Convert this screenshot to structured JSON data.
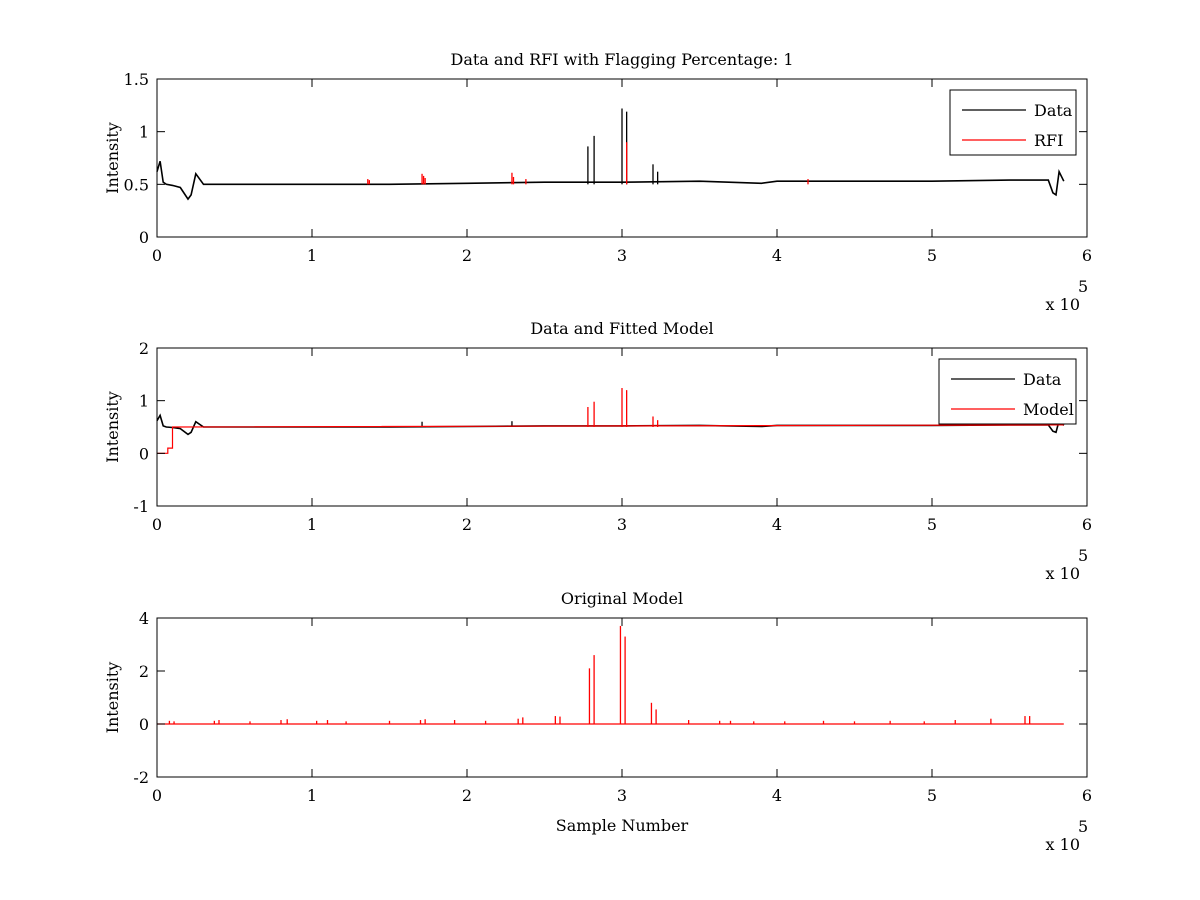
{
  "colors": {
    "data": "#000000",
    "rfi": "#ff0000",
    "model": "#ff0000",
    "background": "#ffffff"
  },
  "chart_data": [
    {
      "type": "line",
      "title": "Data and RFI with Flagging Percentage: 1",
      "xlabel": "",
      "ylabel": "Intensity",
      "xlim": [
        0,
        6
      ],
      "ylim": [
        0,
        1.5
      ],
      "x_ticks": [
        "0",
        "1",
        "2",
        "3",
        "4",
        "5",
        "6"
      ],
      "y_ticks": [
        "0",
        "0.5",
        "1",
        "1.5"
      ],
      "x_multiplier": "x 10",
      "x_multiplier_exp": "5",
      "legend": {
        "placement": "top-right",
        "entries": [
          "Data",
          "RFI"
        ]
      },
      "grid": false,
      "series": [
        {
          "name": "Data",
          "color": "#000000",
          "baseline": 0.5,
          "x": [
            0,
            0.02,
            0.04,
            0.06,
            0.1,
            0.15,
            0.2,
            0.22,
            0.25,
            0.3,
            0.5,
            1.0,
            1.5,
            2.0,
            2.5,
            3.0,
            3.5,
            3.9,
            4.0,
            4.5,
            5.0,
            5.5,
            5.75,
            5.78,
            5.8,
            5.82,
            5.85
          ],
          "y": [
            0.62,
            0.72,
            0.52,
            0.5,
            0.49,
            0.47,
            0.36,
            0.4,
            0.6,
            0.5,
            0.5,
            0.5,
            0.5,
            0.51,
            0.52,
            0.52,
            0.53,
            0.51,
            0.53,
            0.53,
            0.53,
            0.54,
            0.54,
            0.42,
            0.4,
            0.62,
            0.53
          ],
          "spikes": [
            {
              "x": 2.78,
              "y": 0.86
            },
            {
              "x": 2.82,
              "y": 0.96
            },
            {
              "x": 3.0,
              "y": 1.22
            },
            {
              "x": 3.03,
              "y": 1.19
            },
            {
              "x": 3.2,
              "y": 0.69
            },
            {
              "x": 3.23,
              "y": 0.62
            }
          ]
        },
        {
          "name": "RFI",
          "color": "#ff0000",
          "baseline": 0.5,
          "spikes": [
            {
              "x": 1.36,
              "y": 0.55
            },
            {
              "x": 1.37,
              "y": 0.54
            },
            {
              "x": 1.71,
              "y": 0.6
            },
            {
              "x": 1.72,
              "y": 0.58
            },
            {
              "x": 1.73,
              "y": 0.56
            },
            {
              "x": 2.29,
              "y": 0.61
            },
            {
              "x": 2.3,
              "y": 0.57
            },
            {
              "x": 2.38,
              "y": 0.55
            },
            {
              "x": 3.03,
              "y": 0.9
            },
            {
              "x": 4.2,
              "y": 0.55
            }
          ]
        }
      ]
    },
    {
      "type": "line",
      "title": "Data and Fitted Model",
      "xlabel": "",
      "ylabel": "Intensity",
      "xlim": [
        0,
        6
      ],
      "ylim": [
        -1,
        2
      ],
      "x_ticks": [
        "0",
        "1",
        "2",
        "3",
        "4",
        "5",
        "6"
      ],
      "y_ticks": [
        "-1",
        "0",
        "1",
        "2"
      ],
      "x_multiplier": "x 10",
      "x_multiplier_exp": "5",
      "legend": {
        "placement": "top-right",
        "entries": [
          "Data",
          "Model"
        ]
      },
      "grid": false,
      "series": [
        {
          "name": "Data",
          "color": "#000000",
          "baseline": 0.5,
          "x": [
            0,
            0.02,
            0.04,
            0.06,
            0.1,
            0.15,
            0.2,
            0.22,
            0.25,
            0.3,
            0.5,
            1.0,
            1.5,
            2.0,
            2.5,
            3.0,
            3.5,
            3.9,
            4.0,
            4.5,
            5.0,
            5.5,
            5.75,
            5.78,
            5.8,
            5.82,
            5.85
          ],
          "y": [
            0.62,
            0.72,
            0.52,
            0.5,
            0.49,
            0.47,
            0.36,
            0.4,
            0.6,
            0.5,
            0.5,
            0.5,
            0.5,
            0.51,
            0.52,
            0.52,
            0.53,
            0.51,
            0.53,
            0.53,
            0.53,
            0.54,
            0.54,
            0.42,
            0.4,
            0.62,
            0.53
          ],
          "spikes": [
            {
              "x": 1.71,
              "y": 0.6
            },
            {
              "x": 2.29,
              "y": 0.61
            }
          ]
        },
        {
          "name": "Model",
          "color": "#ff0000",
          "baseline": 0.5,
          "x": [
            0,
            0.07,
            0.07,
            0.1,
            0.1,
            5.85
          ],
          "y": [
            0,
            0,
            0.1,
            0.1,
            0.5,
            0.54
          ],
          "spikes": [
            {
              "x": 2.78,
              "y": 0.88
            },
            {
              "x": 2.82,
              "y": 0.98
            },
            {
              "x": 3.0,
              "y": 1.24
            },
            {
              "x": 3.03,
              "y": 1.2
            },
            {
              "x": 3.2,
              "y": 0.7
            },
            {
              "x": 3.23,
              "y": 0.63
            }
          ]
        }
      ]
    },
    {
      "type": "line",
      "title": "Original Model",
      "xlabel": "Sample Number",
      "ylabel": "Intensity",
      "xlim": [
        0,
        6
      ],
      "ylim": [
        -2,
        4
      ],
      "x_ticks": [
        "0",
        "1",
        "2",
        "3",
        "4",
        "5",
        "6"
      ],
      "y_ticks": [
        "-2",
        "0",
        "2",
        "4"
      ],
      "x_multiplier": "x 10",
      "x_multiplier_exp": "5",
      "grid": false,
      "series": [
        {
          "color": "#ff0000",
          "baseline": 0,
          "x": [
            0,
            5.85
          ],
          "y": [
            0,
            0
          ],
          "spikes": [
            {
              "x": 0.08,
              "y": 0.12
            },
            {
              "x": 0.11,
              "y": 0.1
            },
            {
              "x": 0.37,
              "y": 0.12
            },
            {
              "x": 0.4,
              "y": 0.15
            },
            {
              "x": 0.6,
              "y": 0.1
            },
            {
              "x": 0.8,
              "y": 0.15
            },
            {
              "x": 0.84,
              "y": 0.18
            },
            {
              "x": 1.03,
              "y": 0.12
            },
            {
              "x": 1.1,
              "y": 0.15
            },
            {
              "x": 1.22,
              "y": 0.1
            },
            {
              "x": 1.5,
              "y": 0.12
            },
            {
              "x": 1.7,
              "y": 0.15
            },
            {
              "x": 1.73,
              "y": 0.18
            },
            {
              "x": 1.92,
              "y": 0.15
            },
            {
              "x": 2.12,
              "y": 0.12
            },
            {
              "x": 2.33,
              "y": 0.2
            },
            {
              "x": 2.36,
              "y": 0.25
            },
            {
              "x": 2.57,
              "y": 0.3
            },
            {
              "x": 2.6,
              "y": 0.28
            },
            {
              "x": 2.79,
              "y": 2.1
            },
            {
              "x": 2.82,
              "y": 2.6
            },
            {
              "x": 2.99,
              "y": 3.7
            },
            {
              "x": 3.02,
              "y": 3.3
            },
            {
              "x": 3.19,
              "y": 0.8
            },
            {
              "x": 3.22,
              "y": 0.55
            },
            {
              "x": 3.43,
              "y": 0.15
            },
            {
              "x": 3.63,
              "y": 0.12
            },
            {
              "x": 3.7,
              "y": 0.12
            },
            {
              "x": 3.85,
              "y": 0.1
            },
            {
              "x": 4.05,
              "y": 0.1
            },
            {
              "x": 4.3,
              "y": 0.12
            },
            {
              "x": 4.5,
              "y": 0.1
            },
            {
              "x": 4.73,
              "y": 0.12
            },
            {
              "x": 4.95,
              "y": 0.1
            },
            {
              "x": 5.15,
              "y": 0.15
            },
            {
              "x": 5.38,
              "y": 0.2
            },
            {
              "x": 5.6,
              "y": 0.3
            },
            {
              "x": 5.63,
              "y": 0.3
            }
          ]
        }
      ]
    }
  ]
}
